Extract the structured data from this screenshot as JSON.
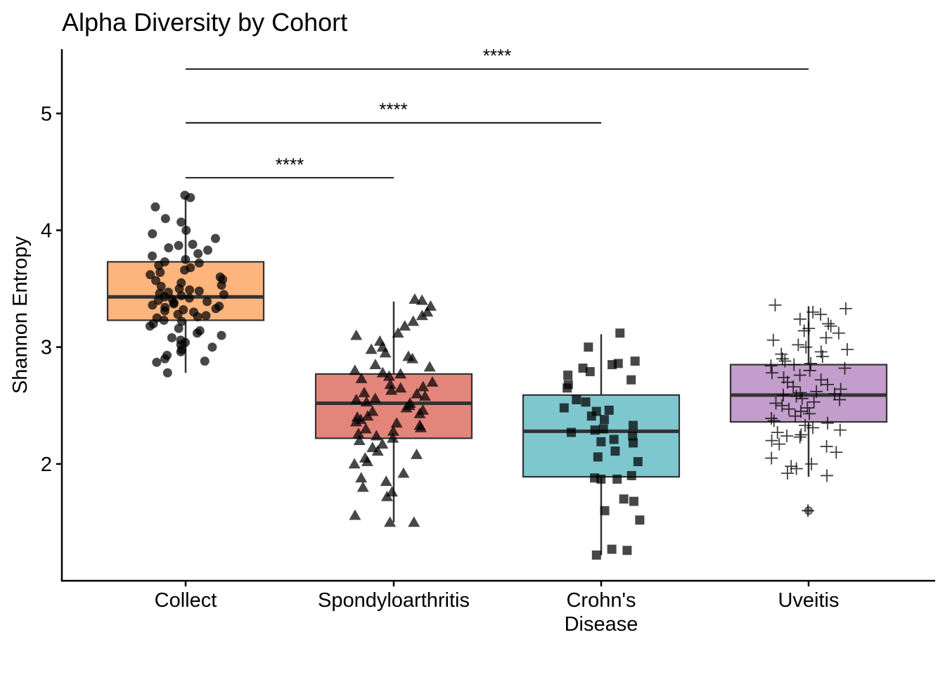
{
  "chart_data": {
    "type": "box",
    "title": "Alpha Diversity by Cohort",
    "xlabel": "",
    "ylabel": "Shannon Entropy",
    "ylim": [
      1.0,
      5.55
    ],
    "yticks": [
      2,
      3,
      4,
      5
    ],
    "categories": [
      "Collect",
      "Spondyloarthritis",
      "Crohn's Disease",
      "Uveitis"
    ],
    "category_label_lines": [
      [
        "Collect"
      ],
      [
        "Spondyloarthritis"
      ],
      [
        "Crohn's",
        "Disease"
      ],
      [
        "Uveitis"
      ]
    ],
    "boxes": [
      {
        "name": "Collect",
        "q1": 3.23,
        "median": 3.43,
        "q3": 3.73,
        "whisker_low": 2.78,
        "whisker_high": 4.29,
        "outliers": [],
        "color": "#FDB57D",
        "marker": "circle"
      },
      {
        "name": "Spondyloarthritis",
        "q1": 2.22,
        "median": 2.52,
        "q3": 2.77,
        "whisker_low": 1.5,
        "whisker_high": 3.39,
        "outliers": [],
        "color": "#E4857C",
        "marker": "triangle"
      },
      {
        "name": "Crohn's Disease",
        "q1": 1.89,
        "median": 2.28,
        "q3": 2.59,
        "whisker_low": 1.22,
        "whisker_high": 3.11,
        "outliers": [],
        "color": "#7FC7CF",
        "marker": "square"
      },
      {
        "name": "Uveitis",
        "q1": 2.36,
        "median": 2.59,
        "q3": 2.85,
        "whisker_low": 1.89,
        "whisker_high": 3.35,
        "outliers": [
          1.6
        ],
        "color": "#C39DCB",
        "marker": "plus"
      }
    ],
    "points": [
      [
        4.3,
        4.28,
        4.2,
        4.1,
        4.07,
        4.0,
        3.97,
        3.93,
        3.88,
        3.87,
        3.85,
        3.83,
        3.8,
        3.78,
        3.75,
        3.73,
        3.72,
        3.7,
        3.68,
        3.66,
        3.64,
        3.62,
        3.6,
        3.58,
        3.57,
        3.55,
        3.53,
        3.52,
        3.5,
        3.49,
        3.48,
        3.47,
        3.46,
        3.45,
        3.44,
        3.43,
        3.42,
        3.41,
        3.4,
        3.39,
        3.38,
        3.37,
        3.36,
        3.35,
        3.34,
        3.33,
        3.32,
        3.31,
        3.3,
        3.28,
        3.27,
        3.26,
        3.25,
        3.23,
        3.22,
        3.2,
        3.18,
        3.16,
        3.14,
        3.12,
        3.1,
        3.08,
        3.06,
        3.04,
        3.02,
        3.0,
        2.98,
        2.96,
        2.93,
        2.9,
        2.88,
        2.87,
        2.78
      ],
      [
        3.41,
        3.4,
        3.35,
        3.3,
        3.27,
        3.22,
        3.18,
        3.12,
        3.1,
        3.05,
        3.0,
        2.98,
        2.95,
        2.92,
        2.9,
        2.85,
        2.83,
        2.8,
        2.78,
        2.77,
        2.75,
        2.73,
        2.7,
        2.68,
        2.66,
        2.65,
        2.63,
        2.61,
        2.6,
        2.58,
        2.56,
        2.55,
        2.53,
        2.52,
        2.5,
        2.48,
        2.46,
        2.45,
        2.43,
        2.41,
        2.4,
        2.38,
        2.36,
        2.35,
        2.33,
        2.31,
        2.3,
        2.28,
        2.26,
        2.24,
        2.22,
        2.2,
        2.17,
        2.14,
        2.11,
        2.08,
        2.05,
        2.02,
        2.0,
        1.92,
        1.88,
        1.85,
        1.8,
        1.76,
        1.72,
        1.56,
        1.5,
        1.5
      ],
      [
        3.12,
        3.0,
        2.88,
        2.86,
        2.85,
        2.82,
        2.79,
        2.76,
        2.72,
        2.68,
        2.65,
        2.55,
        2.53,
        2.48,
        2.46,
        2.45,
        2.41,
        2.38,
        2.33,
        2.3,
        2.29,
        2.27,
        2.24,
        2.21,
        2.19,
        2.18,
        2.11,
        2.06,
        2.02,
        1.9,
        1.88,
        1.87,
        1.87,
        1.7,
        1.68,
        1.6,
        1.52,
        1.27,
        1.26,
        1.22
      ],
      [
        3.36,
        3.33,
        3.3,
        3.28,
        3.24,
        3.2,
        3.18,
        3.16,
        3.14,
        3.12,
        3.08,
        3.06,
        3.02,
        3.0,
        2.98,
        2.96,
        2.94,
        2.92,
        2.9,
        2.88,
        2.86,
        2.85,
        2.84,
        2.82,
        2.8,
        2.78,
        2.76,
        2.74,
        2.72,
        2.7,
        2.68,
        2.66,
        2.64,
        2.62,
        2.61,
        2.6,
        2.59,
        2.58,
        2.56,
        2.55,
        2.53,
        2.52,
        2.5,
        2.48,
        2.47,
        2.45,
        2.43,
        2.41,
        2.39,
        2.37,
        2.35,
        2.33,
        2.31,
        2.29,
        2.27,
        2.25,
        2.24,
        2.23,
        2.2,
        2.17,
        2.15,
        2.1,
        2.05,
        2.0,
        1.98,
        1.96,
        1.92,
        1.9,
        1.6
      ]
    ],
    "comparisons": [
      {
        "from": 0,
        "to": 1,
        "y": 4.45,
        "label": "****"
      },
      {
        "from": 0,
        "to": 2,
        "y": 4.92,
        "label": "****"
      },
      {
        "from": 0,
        "to": 3,
        "y": 5.38,
        "label": "****"
      }
    ],
    "grid": false,
    "legend": "none"
  }
}
